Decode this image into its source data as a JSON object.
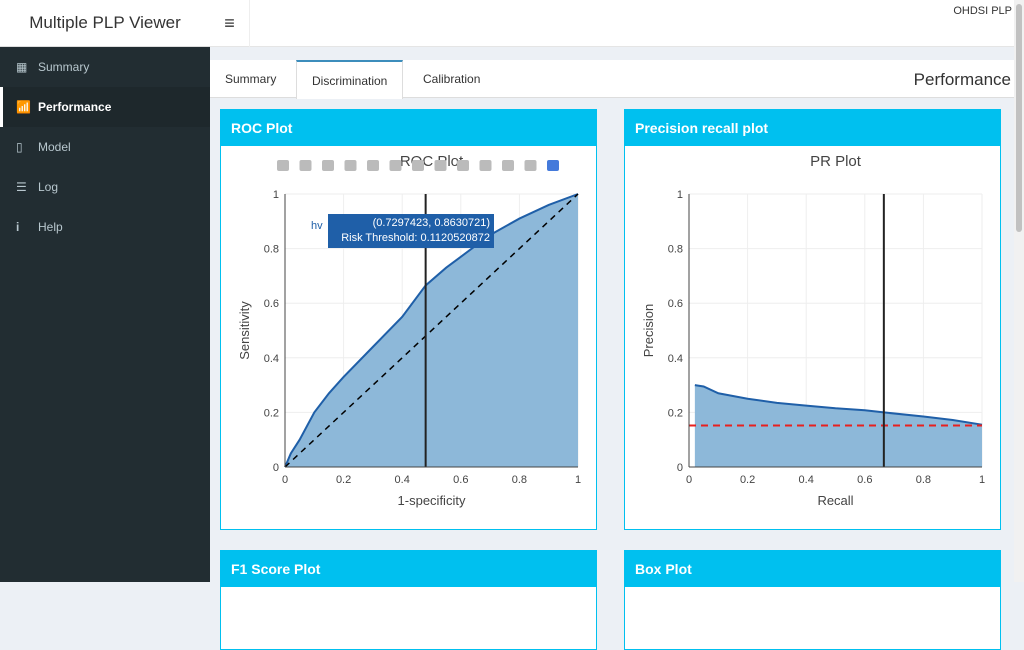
{
  "header": {
    "title": "Multiple PLP Viewer",
    "menu_icon": "≡",
    "logo_alt": "OHDSI PLP"
  },
  "sidebar": {
    "items": [
      {
        "label": "Summary",
        "icon": "table-icon"
      },
      {
        "label": "Performance",
        "icon": "bar-chart-icon"
      },
      {
        "label": "Model",
        "icon": "clipboard-icon"
      },
      {
        "label": "Log",
        "icon": "list-icon"
      },
      {
        "label": "Help",
        "icon": "info-icon"
      }
    ]
  },
  "tabs": [
    {
      "label": "Summary"
    },
    {
      "label": "Discrimination"
    },
    {
      "label": "Calibration"
    }
  ],
  "section_title": "Performance",
  "boxes": {
    "roc": "ROC Plot",
    "pr": "Precision recall plot",
    "f1": "F1 Score Plot",
    "box": "Box Plot"
  },
  "tooltip": {
    "prefix": "hv",
    "coords": "(0.7297423, 0.8630721)",
    "threshold": "Risk Threshold: 0.1120520872"
  },
  "chart_data": [
    {
      "type": "area",
      "title": "ROC Plot",
      "xlabel": "1-specificity",
      "ylabel": "Sensitivity",
      "xlim": [
        0,
        1
      ],
      "ylim": [
        0,
        1
      ],
      "ticks": [
        "0",
        "0.2",
        "0.4",
        "0.6",
        "0.8",
        "1"
      ],
      "x": [
        0,
        0.02,
        0.05,
        0.1,
        0.15,
        0.2,
        0.3,
        0.4,
        0.48,
        0.55,
        0.6,
        0.7,
        0.8,
        0.9,
        1
      ],
      "y": [
        0,
        0.05,
        0.1,
        0.2,
        0.27,
        0.33,
        0.44,
        0.55,
        0.665,
        0.73,
        0.77,
        0.85,
        0.91,
        0.96,
        1
      ],
      "vline": 0.48,
      "diagonal": true,
      "fill": "#8db8d9",
      "line": "#1f5fa8"
    },
    {
      "type": "area",
      "title": "PR Plot",
      "xlabel": "Recall",
      "ylabel": "Precision",
      "xlim": [
        0,
        1
      ],
      "ylim": [
        0,
        1
      ],
      "ticks": [
        "0",
        "0.2",
        "0.4",
        "0.6",
        "0.8",
        "1"
      ],
      "x": [
        0.02,
        0.05,
        0.1,
        0.2,
        0.3,
        0.4,
        0.5,
        0.6,
        0.665,
        0.8,
        0.9,
        1
      ],
      "y": [
        0.3,
        0.295,
        0.27,
        0.25,
        0.235,
        0.225,
        0.215,
        0.208,
        0.2,
        0.185,
        0.172,
        0.155
      ],
      "vline": 0.665,
      "hline": 0.152,
      "fill": "#8db8d9",
      "line": "#1f5fa8",
      "hline_color": "#e8201f"
    }
  ]
}
